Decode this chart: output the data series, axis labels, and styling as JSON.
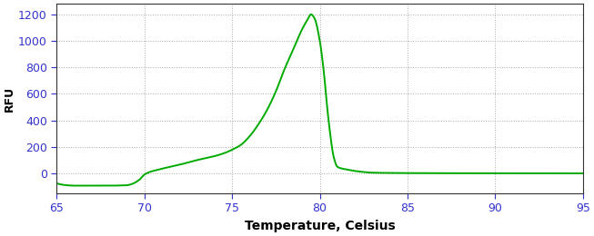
{
  "title": "",
  "xlabel": "Temperature, Celsius",
  "ylabel": "RFU",
  "xlim": [
    65,
    95
  ],
  "ylim": [
    -150,
    1280
  ],
  "xticks": [
    65,
    70,
    75,
    80,
    85,
    90,
    95
  ],
  "yticks": [
    0,
    200,
    400,
    600,
    800,
    1000,
    1200
  ],
  "line_color": "#00aa00",
  "line_width": 1.4,
  "background_color": "#ffffff",
  "grid_color": "#aaaaaa",
  "tick_label_color": "#3333cc",
  "axis_label_color": "#000000",
  "spine_color": "#333333",
  "peak_temp": 79.5,
  "peak_rfu": 1200
}
